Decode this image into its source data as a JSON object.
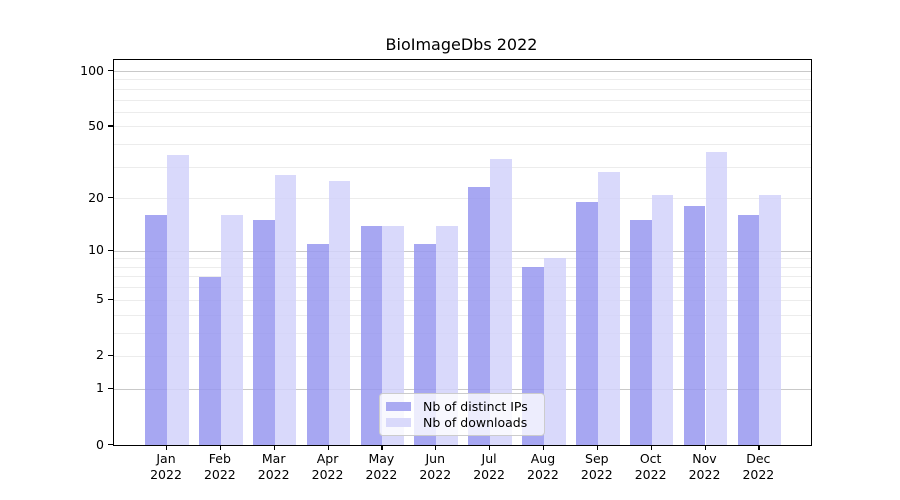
{
  "chart_data": {
    "type": "bar",
    "title": "BioImageDbs 2022",
    "xlabel": "",
    "ylabel": "",
    "yscale": "log1p",
    "ylim": [
      0,
      113
    ],
    "grid": "on",
    "legend_position": "lower center",
    "categories": [
      "Jan",
      "Feb",
      "Mar",
      "Apr",
      "May",
      "Jun",
      "Jul",
      "Aug",
      "Sep",
      "Oct",
      "Nov",
      "Dec"
    ],
    "category_year": "2022",
    "series": [
      {
        "name": "Nb of distinct IPs",
        "color": "rgba(152,152,240,0.85)",
        "solid_color": "#aaaaf2",
        "values": [
          16,
          7,
          15,
          11,
          14,
          11,
          23,
          8,
          19,
          15,
          18,
          16
        ]
      },
      {
        "name": "Nb of downloads",
        "color": "rgba(210,210,250,0.85)",
        "solid_color": "#d9d9fb",
        "values": [
          35,
          16,
          27,
          25,
          14,
          14,
          33,
          9,
          28,
          21,
          36,
          21
        ]
      }
    ],
    "ytick_values": [
      100,
      50,
      20,
      10,
      5,
      2,
      1,
      0
    ],
    "grid_major_values": [
      1,
      10,
      100
    ],
    "grid_minor_values": [
      2,
      3,
      4,
      5,
      6,
      7,
      8,
      9,
      20,
      30,
      40,
      50,
      60,
      70,
      80,
      90
    ],
    "axis_color": "#000000",
    "grid_major_color": "#c9c9c9",
    "grid_minor_color": "#ececec"
  }
}
